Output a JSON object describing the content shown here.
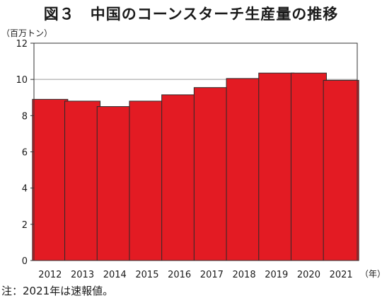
{
  "title": "図３　中国のコーンスターチ生産量の推移",
  "y_unit": "（百万トン）",
  "x_unit": "（年）",
  "note": "注：2021年は速報値。",
  "colors": {
    "bar": "#e31b23",
    "bar_stroke": "#2a2a2a",
    "grid": "#9a9a9a",
    "axis": "#333333"
  },
  "chart_data": {
    "type": "bar",
    "title": "図３　中国のコーンスターチ生産量の推移",
    "xlabel": "（年）",
    "ylabel": "（百万トン）",
    "categories": [
      "2012",
      "2013",
      "2014",
      "2015",
      "2016",
      "2017",
      "2018",
      "2019",
      "2020",
      "2021"
    ],
    "values": [
      8.9,
      8.8,
      8.5,
      8.8,
      9.15,
      9.55,
      10.05,
      10.35,
      10.35,
      9.95
    ],
    "ylim": [
      0,
      12
    ],
    "yticks": [
      0,
      2,
      4,
      6,
      8,
      10,
      12
    ],
    "grid": true,
    "legend": "none"
  }
}
